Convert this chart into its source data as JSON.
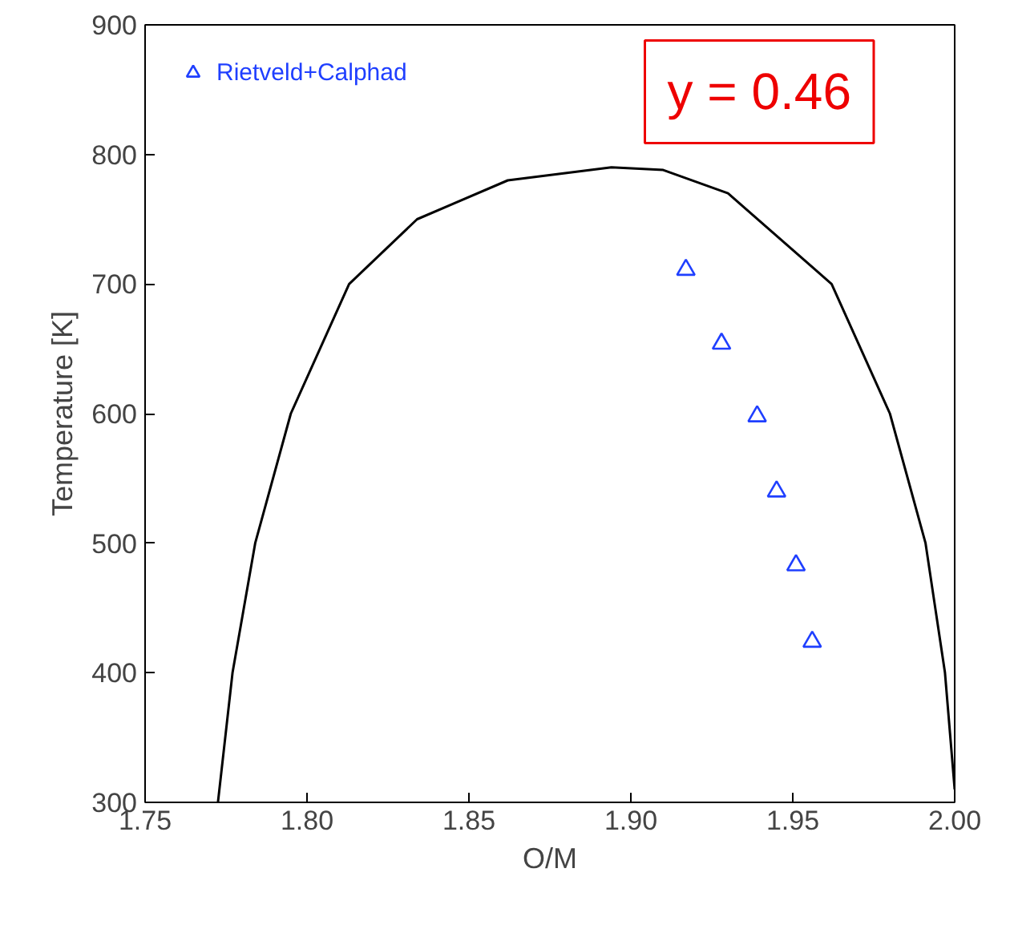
{
  "chart_data": {
    "type": "line",
    "xlabel": "O/M",
    "ylabel": "Temperature [K]",
    "xlim": [
      1.75,
      2.0
    ],
    "ylim": [
      300,
      900
    ],
    "xticks": [
      {
        "value": 1.75,
        "label": "1.75"
      },
      {
        "value": 1.8,
        "label": "1.80"
      },
      {
        "value": 1.85,
        "label": "1.85"
      },
      {
        "value": 1.9,
        "label": "1.90"
      },
      {
        "value": 1.95,
        "label": "1.95"
      },
      {
        "value": 2.0,
        "label": "2.00"
      }
    ],
    "yticks": [
      300,
      400,
      500,
      600,
      700,
      800,
      900
    ],
    "grid": false,
    "legend": "top left",
    "annotations": [
      "y = 0.46"
    ],
    "series": [
      {
        "color": "#000000",
        "marker": "none",
        "x": [
          1.7725,
          1.777,
          1.784,
          1.795,
          1.813,
          1.834,
          1.862,
          1.894,
          1.91,
          1.93,
          1.962,
          1.98,
          1.991,
          1.997,
          2.0
        ],
        "values": [
          300,
          400,
          500,
          600,
          700,
          750,
          780,
          790,
          788,
          770,
          700,
          600,
          500,
          400,
          310
        ]
      },
      {
        "type": "scatter",
        "name": "Rietveld+Calphad",
        "color": "#1f3fff",
        "marker": "triangle",
        "x": [
          1.917,
          1.928,
          1.939,
          1.945,
          1.951,
          1.956
        ],
        "values": [
          711,
          654,
          598,
          540,
          483,
          424
        ]
      }
    ]
  }
}
